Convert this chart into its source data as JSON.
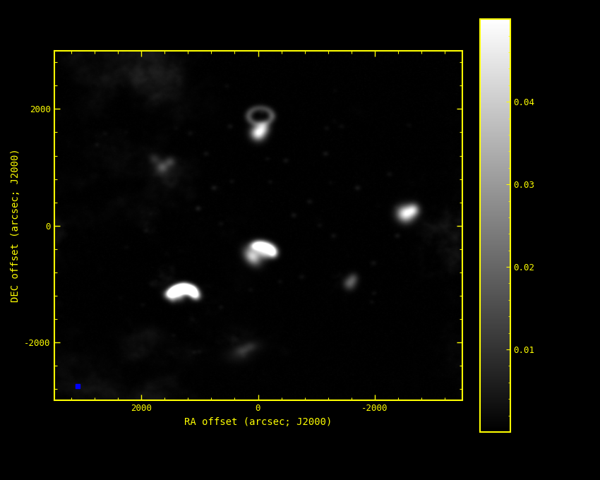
{
  "title": "",
  "xlabel": "RA offset (arcsec; J2000)",
  "ylabel": "DEC offset (arcsec; J2000)",
  "xlim": [
    3500,
    -3500
  ],
  "ylim": [
    -3000,
    3000
  ],
  "xticks": [
    2000,
    0,
    -2000
  ],
  "yticks": [
    -2000,
    0,
    2000
  ],
  "cmap": "gray",
  "vmin": 0.0,
  "vmax": 0.05,
  "cbar_ticks": [
    0.01,
    0.02,
    0.03,
    0.04
  ],
  "figure_bg": "#000000",
  "axes_bg": "#000000",
  "tick_color": "#ffff00",
  "label_color": "#ffff00",
  "spine_color": "#ffff00",
  "seed": 77,
  "beam_color": "#0000ff"
}
